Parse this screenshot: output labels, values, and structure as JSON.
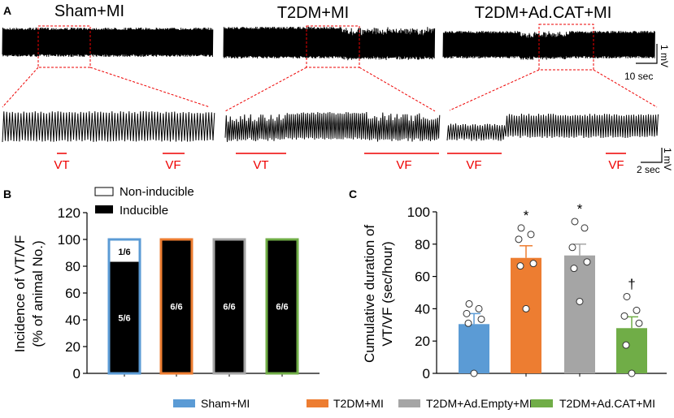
{
  "panel_a": {
    "label": "A",
    "groups": [
      {
        "title": "Sham+MI",
        "events": [
          {
            "label": "VT"
          },
          {
            "label": "VF"
          }
        ]
      },
      {
        "title": "T2DM+MI",
        "events": [
          {
            "label": "VT"
          },
          {
            "label": "VF"
          }
        ]
      },
      {
        "title": "T2DM+Ad.CAT+MI",
        "events": [
          {
            "label": "VF"
          },
          {
            "label": "VF"
          }
        ]
      }
    ],
    "scale_top": {
      "voltage": "1 mV",
      "time": "10 sec"
    },
    "scale_bottom": {
      "voltage": "1 mV",
      "time": "2 sec"
    }
  },
  "legend": [
    {
      "label": "Sham+MI",
      "color": "#5b9bd5"
    },
    {
      "label": "T2DM+MI",
      "color": "#ed7d31"
    },
    {
      "label": "T2DM+Ad.Empty+MI",
      "color": "#a5a5a5"
    },
    {
      "label": "T2DM+Ad.CAT+MI",
      "color": "#70ad47"
    }
  ],
  "chart_data": [
    {
      "panel": "B",
      "type": "bar",
      "stacked": true,
      "ylabel_line1": "Incidence of VT/VF",
      "ylabel_line2": "(% of animal No.)",
      "ylim": [
        0,
        120
      ],
      "yticks": [
        "0",
        "20",
        "40",
        "60",
        "80",
        "100",
        "120"
      ],
      "legend": {
        "non_inducible": "Non-inducible",
        "inducible": "Inducible"
      },
      "categories": [
        "Sham+MI",
        "T2DM+MI",
        "T2DM+Ad.Empty+MI",
        "T2DM+Ad.CAT+MI"
      ],
      "series": [
        {
          "name": "Inducible",
          "values": [
            83.3,
            100,
            100,
            100
          ],
          "labels": [
            "5/6",
            "6/6",
            "6/6",
            "6/6"
          ]
        },
        {
          "name": "Non-inducible",
          "values": [
            16.7,
            0,
            0,
            0
          ],
          "labels": [
            "1/6",
            "",
            "",
            ""
          ]
        }
      ]
    },
    {
      "panel": "C",
      "type": "bar",
      "ylabel_line1": "Cumulative duration of",
      "ylabel_line2": "VT/VF (sec/hour)",
      "ylim": [
        0,
        100
      ],
      "yticks": [
        "0",
        "20",
        "40",
        "60",
        "80",
        "100"
      ],
      "categories": [
        "Sham+MI",
        "T2DM+MI",
        "T2DM+Ad.Empty+MI",
        "T2DM+Ad.CAT+MI"
      ],
      "values": [
        30.5,
        71.5,
        73,
        28
      ],
      "sem": [
        6.5,
        7.5,
        7,
        7
      ],
      "points": [
        [
          43,
          40,
          37,
          33.5,
          31,
          0
        ],
        [
          90,
          86,
          83,
          68,
          66.5,
          40
        ],
        [
          94,
          90,
          78,
          69,
          65,
          44.5
        ],
        [
          47.5,
          39,
          35.5,
          31,
          17.5,
          0
        ]
      ],
      "annotations": [
        "",
        "*",
        "*",
        "†"
      ]
    }
  ]
}
